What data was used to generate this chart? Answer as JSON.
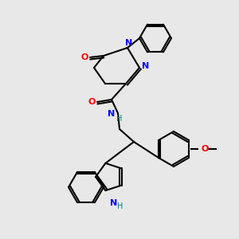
{
  "background_color": "#e8e8e8",
  "bond_color": "#000000",
  "atom_colors": {
    "N": "#0000ff",
    "O": "#ff0000",
    "H": "#008080",
    "C": "#000000"
  },
  "figsize": [
    3.0,
    3.0
  ],
  "dpi": 100
}
